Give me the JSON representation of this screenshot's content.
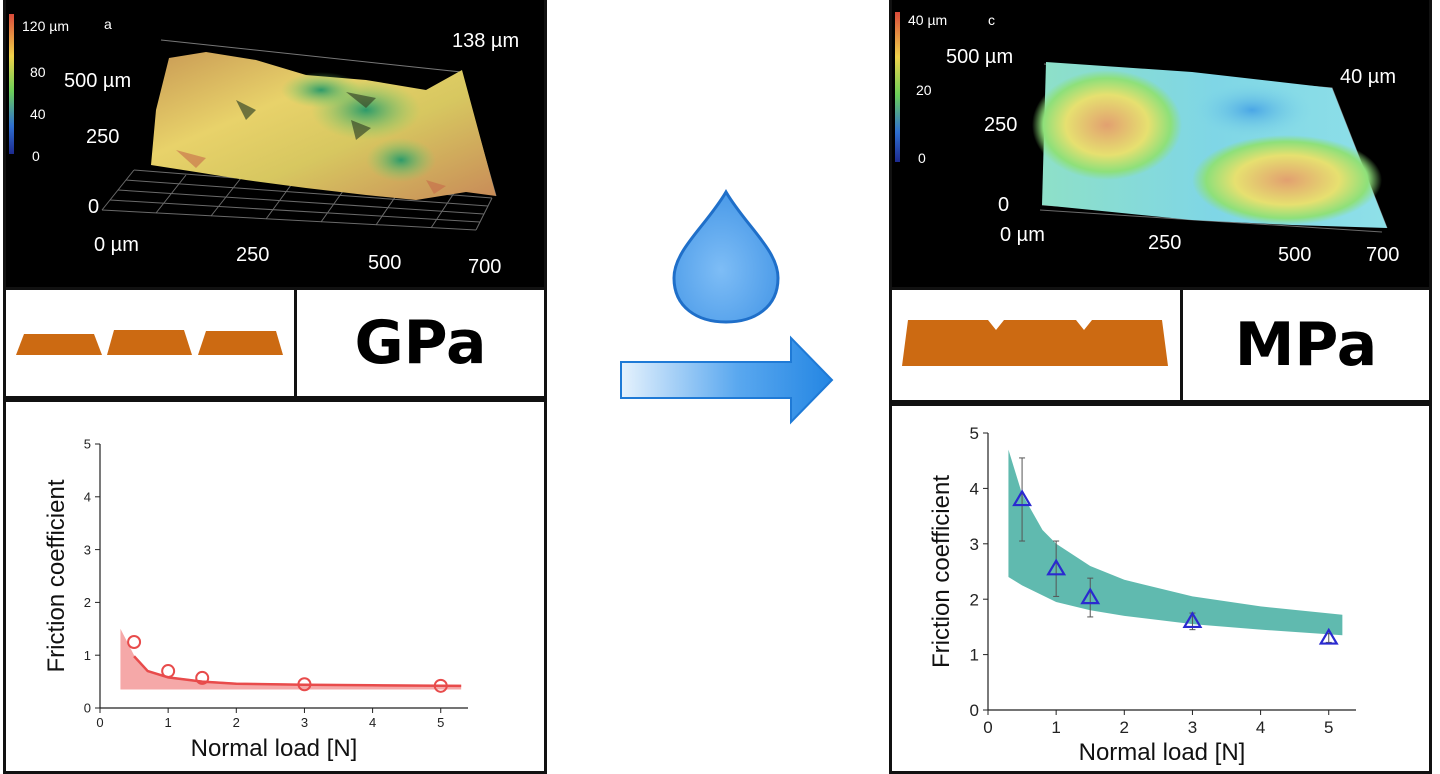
{
  "left": {
    "topography": {
      "panel_letter": "a",
      "colorbar_labels": [
        "120 µm",
        "80",
        "40",
        "0"
      ],
      "height_label": "138 µm",
      "y_labels": [
        "500 µm",
        "250",
        "0"
      ],
      "x_labels": [
        "0 µm",
        "250",
        "500",
        "700"
      ]
    },
    "stress_unit": "GPa",
    "chart_data": {
      "type": "scatter",
      "xlabel": "Normal load [N]",
      "ylabel": "Friction coefficient",
      "xlim": [
        0,
        5.4
      ],
      "ylim": [
        0,
        5
      ],
      "x_ticks": [
        0,
        1,
        2,
        3,
        4,
        5
      ],
      "y_ticks": [
        0,
        1,
        2,
        3,
        4,
        5
      ],
      "x": [
        0.5,
        1,
        1.5,
        3,
        5
      ],
      "y": [
        1.25,
        0.7,
        0.57,
        0.45,
        0.42
      ],
      "marker": "circle",
      "marker_color": "#e84b4b",
      "band_color": "#f28b8b",
      "band_upper": [
        [
          0.3,
          1.5
        ],
        [
          0.5,
          1.0
        ],
        [
          0.7,
          0.72
        ],
        [
          1.0,
          0.6
        ],
        [
          1.5,
          0.52
        ],
        [
          2.0,
          0.48
        ],
        [
          3.0,
          0.46
        ],
        [
          4.0,
          0.45
        ],
        [
          5.3,
          0.44
        ]
      ],
      "band_lower": [
        [
          0.3,
          0.35
        ],
        [
          5.3,
          0.35
        ]
      ]
    }
  },
  "right": {
    "topography": {
      "panel_letter": "c",
      "colorbar_labels": [
        "40 µm",
        "20",
        "0"
      ],
      "height_label": "40 µm",
      "y_labels": [
        "500 µm",
        "250",
        "0"
      ],
      "x_labels": [
        "0 µm",
        "250",
        "500",
        "700"
      ]
    },
    "stress_unit": "MPa",
    "chart_data": {
      "type": "scatter",
      "xlabel": "Normal load [N]",
      "ylabel": "Friction coefficient",
      "xlim": [
        0,
        5.4
      ],
      "ylim": [
        0,
        5
      ],
      "x_ticks": [
        0,
        1,
        2,
        3,
        4,
        5
      ],
      "y_ticks": [
        0,
        1,
        2,
        3,
        4,
        5
      ],
      "x": [
        0.5,
        1,
        1.5,
        3,
        5
      ],
      "y": [
        3.8,
        2.55,
        2.03,
        1.6,
        1.3
      ],
      "y_err": [
        0.75,
        0.5,
        0.35,
        0.15,
        0.08
      ],
      "marker": "triangle",
      "marker_color": "#2a2ad0",
      "band_color": "#4fb2a6",
      "band_upper": [
        [
          0.3,
          4.7
        ],
        [
          0.5,
          3.9
        ],
        [
          0.8,
          3.25
        ],
        [
          1.0,
          3.0
        ],
        [
          1.5,
          2.6
        ],
        [
          2.0,
          2.35
        ],
        [
          3.0,
          2.05
        ],
        [
          4.0,
          1.87
        ],
        [
          5.2,
          1.72
        ]
      ],
      "band_lower": [
        [
          0.3,
          2.4
        ],
        [
          0.5,
          2.25
        ],
        [
          1.0,
          1.95
        ],
        [
          1.5,
          1.8
        ],
        [
          2.0,
          1.7
        ],
        [
          3.0,
          1.55
        ],
        [
          4.0,
          1.45
        ],
        [
          5.2,
          1.35
        ]
      ]
    }
  },
  "colors": {
    "droplet": "#5aa9f0",
    "arrow": "#2f8ee6",
    "asperity": "#cc6a12"
  }
}
